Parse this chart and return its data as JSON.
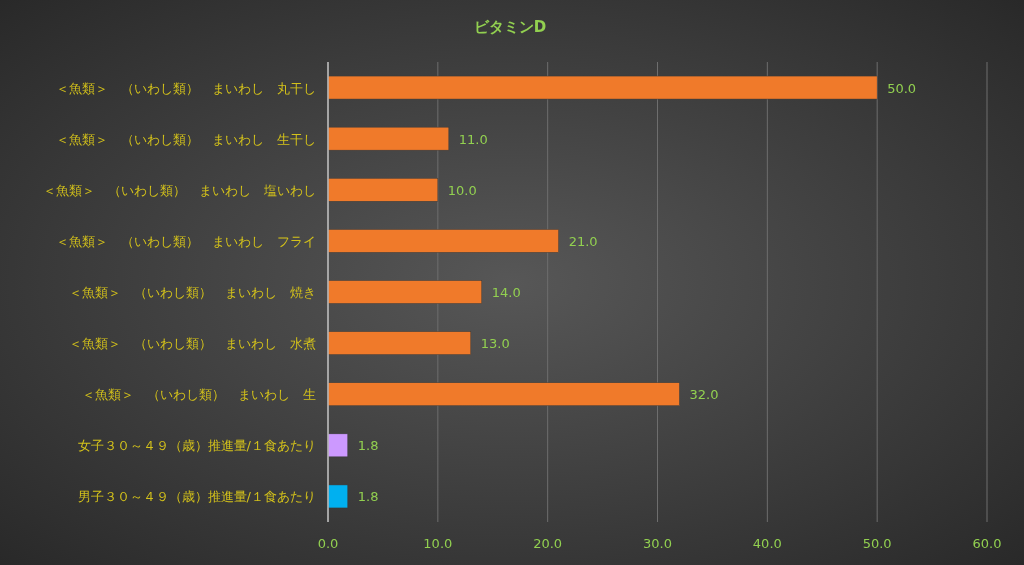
{
  "chart_data": {
    "type": "bar",
    "orientation": "horizontal",
    "title": "ビタミンD",
    "categories": [
      "＜魚類＞　（いわし類）　まいわし　丸干し",
      "＜魚類＞　（いわし類）　まいわし　生干し",
      "＜魚類＞　（いわし類）　まいわし　塩いわし",
      "＜魚類＞　（いわし類）　まいわし　フライ",
      "＜魚類＞　（いわし類）　まいわし　焼き",
      "＜魚類＞　（いわし類）　まいわし　水煮",
      "＜魚類＞　（いわし類）　まいわし　生",
      "女子３０～４９（歳）推進量/１食あたり",
      "男子３０～４９（歳）推進量/１食あたり"
    ],
    "values": [
      50.0,
      11.0,
      10.0,
      21.0,
      14.0,
      13.0,
      32.0,
      1.8,
      1.8
    ],
    "colors": [
      "#f07a2a",
      "#f07a2a",
      "#f07a2a",
      "#f07a2a",
      "#f07a2a",
      "#f07a2a",
      "#f07a2a",
      "#cc99ff",
      "#00b0f0"
    ],
    "value_labels": [
      "50.0",
      "11.0",
      "10.0",
      "21.0",
      "14.0",
      "13.0",
      "32.0",
      "1.8",
      "1.8"
    ],
    "xlim": [
      0,
      60
    ],
    "xticks": [
      {
        "value": 0,
        "label": "0.0"
      },
      {
        "value": 10,
        "label": "10.0"
      },
      {
        "value": 20,
        "label": "20.0"
      },
      {
        "value": 30,
        "label": "30.0"
      },
      {
        "value": 40,
        "label": "40.0"
      },
      {
        "value": 50,
        "label": "50.0"
      },
      {
        "value": 60,
        "label": "60.0"
      }
    ],
    "grid": "x"
  }
}
